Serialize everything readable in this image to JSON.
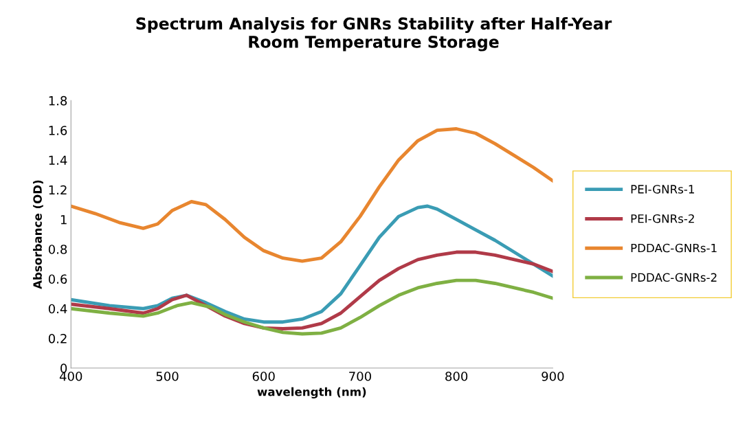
{
  "chart_data": {
    "type": "line",
    "title": "Spectrum Analysis for GNRs Stability after Half-Year\nRoom Temperature Storage",
    "xlabel": "wavelength (nm)",
    "ylabel": "Absorbance (OD)",
    "xlim": [
      400,
      900
    ],
    "xticks": [
      400,
      500,
      600,
      700,
      800,
      900
    ],
    "ylim": [
      0,
      1.8
    ],
    "yticks": [
      0,
      {
        "value": 0.2,
        "label": "0.2"
      },
      {
        "value": 0.4,
        "label": "0.4"
      },
      {
        "value": 0.6,
        "label": "0.6"
      },
      {
        "value": 0.8,
        "label": "0.8"
      },
      1,
      {
        "value": 1.2,
        "label": "1.2"
      },
      {
        "value": 1.4,
        "label": "1.4"
      },
      {
        "value": 1.6,
        "label": "1.6"
      },
      {
        "value": 1.8,
        "label": "1.8"
      }
    ],
    "grid": false,
    "legend": "right",
    "marker": "none",
    "line_style": "solid",
    "series": [
      {
        "name": "PEI-GNRs-1",
        "color": "#3a9cb4",
        "x": [
          400,
          440,
          475,
          490,
          505,
          520,
          540,
          560,
          580,
          600,
          620,
          640,
          660,
          680,
          700,
          720,
          740,
          760,
          770,
          780,
          800,
          820,
          840,
          860,
          880,
          900
        ],
        "values": [
          0.46,
          0.42,
          0.4,
          0.42,
          0.47,
          0.49,
          0.44,
          0.38,
          0.33,
          0.31,
          0.31,
          0.33,
          0.38,
          0.5,
          0.69,
          0.88,
          1.02,
          1.08,
          1.09,
          1.07,
          1.0,
          0.93,
          0.86,
          0.78,
          0.7,
          0.62
        ]
      },
      {
        "name": "PEI-GNRs-2",
        "color": "#b03a48",
        "x": [
          400,
          440,
          475,
          490,
          505,
          520,
          540,
          560,
          580,
          600,
          620,
          640,
          660,
          680,
          700,
          720,
          740,
          760,
          780,
          800,
          820,
          840,
          860,
          880,
          900
        ],
        "values": [
          0.43,
          0.4,
          0.37,
          0.4,
          0.46,
          0.49,
          0.42,
          0.35,
          0.3,
          0.27,
          0.265,
          0.27,
          0.3,
          0.37,
          0.48,
          0.59,
          0.67,
          0.73,
          0.76,
          0.78,
          0.78,
          0.76,
          0.73,
          0.7,
          0.65
        ]
      },
      {
        "name": "PDDAC-GNRs-1",
        "color": "#e8862f",
        "x": [
          400,
          425,
          450,
          475,
          490,
          505,
          525,
          540,
          560,
          580,
          600,
          620,
          640,
          660,
          680,
          700,
          720,
          740,
          760,
          780,
          800,
          820,
          840,
          860,
          880,
          900
        ],
        "values": [
          1.09,
          1.04,
          0.98,
          0.94,
          0.97,
          1.06,
          1.12,
          1.1,
          1.0,
          0.88,
          0.79,
          0.74,
          0.72,
          0.74,
          0.85,
          1.02,
          1.22,
          1.4,
          1.53,
          1.6,
          1.61,
          1.58,
          1.51,
          1.43,
          1.35,
          1.26
        ]
      },
      {
        "name": "PDDAC-GNRs-2",
        "color": "#7fb043",
        "x": [
          400,
          440,
          475,
          490,
          510,
          525,
          545,
          560,
          580,
          600,
          620,
          640,
          660,
          680,
          700,
          720,
          740,
          760,
          780,
          800,
          820,
          840,
          860,
          880,
          900
        ],
        "values": [
          0.4,
          0.37,
          0.35,
          0.37,
          0.42,
          0.44,
          0.41,
          0.36,
          0.31,
          0.27,
          0.24,
          0.23,
          0.235,
          0.27,
          0.34,
          0.42,
          0.49,
          0.54,
          0.57,
          0.59,
          0.59,
          0.57,
          0.54,
          0.51,
          0.47
        ]
      }
    ]
  }
}
